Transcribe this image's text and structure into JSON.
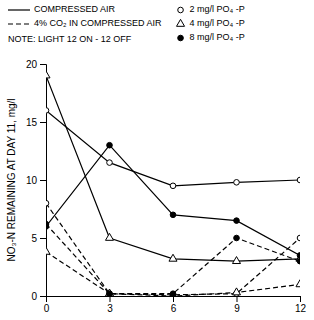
{
  "chart_data": {
    "type": "line",
    "x": [
      0,
      3,
      6,
      9,
      12
    ],
    "series": [
      {
        "values": [
          16.0,
          11.5,
          9.5,
          9.8,
          10.0
        ],
        "line_style": "solid",
        "marker": "open-circle"
      },
      {
        "values": [
          19.0,
          5.0,
          3.2,
          3.0,
          3.2
        ],
        "line_style": "solid",
        "marker": "open-triangle"
      },
      {
        "values": [
          6.0,
          13.0,
          7.0,
          6.5,
          3.5
        ],
        "line_style": "solid",
        "marker": "filled-circle"
      },
      {
        "values": [
          8.0,
          0.2,
          0.1,
          0.2,
          5.0
        ],
        "line_style": "dashed",
        "marker": "open-circle"
      },
      {
        "values": [
          3.8,
          0.2,
          0.0,
          0.3,
          1.0
        ],
        "line_style": "dashed",
        "marker": "open-triangle"
      },
      {
        "values": [
          6.2,
          0.2,
          0.2,
          5.0,
          3.0
        ],
        "line_style": "dashed",
        "marker": "filled-circle"
      }
    ],
    "color": "#000000",
    "y_label": "NO₃-N REMAINING AT DAY 11, mg/l",
    "xlim": [
      0,
      12
    ],
    "ylim": [
      0,
      20
    ],
    "xticks": [
      0,
      3,
      6,
      9,
      12
    ],
    "yticks": [
      0,
      5,
      10,
      15,
      20
    ],
    "legend_entries": [
      {
        "label": "COMPRESSED AIR",
        "line_style": "solid"
      },
      {
        "label": "4% CO₂ IN COMPRESSED AIR",
        "line_style": "dashed"
      },
      {
        "label": "2 mg/l  PO₄ -P",
        "marker": "open-circle"
      },
      {
        "label": "4 mg/l  PO₄ -P",
        "marker": "open-triangle"
      },
      {
        "label": "8 mg/l  PO₄ -P",
        "marker": "filled-circle"
      }
    ],
    "annotations": [
      "NOTE: LIGHT 12 ON - 12 OFF"
    ]
  }
}
